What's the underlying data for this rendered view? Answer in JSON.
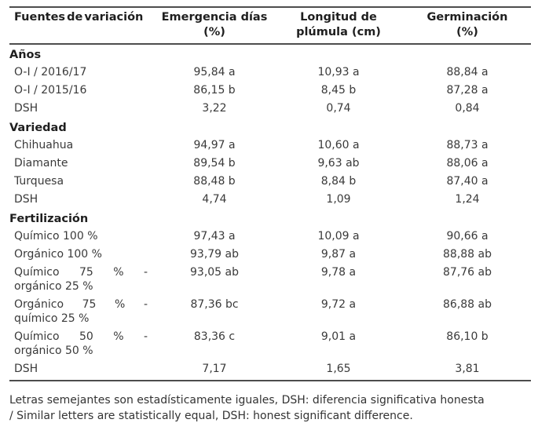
{
  "table": {
    "columns": [
      {
        "line1": "Fuentes de variación",
        "line2": ""
      },
      {
        "line1": "Emergencia días",
        "line2": "(%)"
      },
      {
        "line1": "Longitud de",
        "line2": "plúmula (cm)"
      },
      {
        "line1": "Germinación",
        "line2": "(%)"
      }
    ],
    "sections": [
      {
        "title": "Años",
        "rows": [
          {
            "label_lines": [
              "O-I / 2016/17"
            ],
            "values": [
              "95,84 a",
              "10,93 a",
              "88,84 a"
            ]
          },
          {
            "label_lines": [
              "O-I / 2015/16"
            ],
            "values": [
              "86,15 b",
              "8,45 b",
              "87,28 a"
            ]
          },
          {
            "label_lines": [
              "DSH"
            ],
            "values": [
              "3,22",
              "0,74",
              "0,84"
            ]
          }
        ]
      },
      {
        "title": "Variedad",
        "rows": [
          {
            "label_lines": [
              "Chihuahua"
            ],
            "values": [
              "94,97 a",
              "10,60 a",
              "88,73 a"
            ]
          },
          {
            "label_lines": [
              "Diamante"
            ],
            "values": [
              "89,54 b",
              "9,63 ab",
              "88,06 a"
            ]
          },
          {
            "label_lines": [
              "Turquesa"
            ],
            "values": [
              "88,48 b",
              "8,84 b",
              "87,40 a"
            ]
          },
          {
            "label_lines": [
              "DSH"
            ],
            "values": [
              "4,74",
              "1,09",
              "1,24"
            ]
          }
        ]
      },
      {
        "title": "Fertilización",
        "rows": [
          {
            "label_lines": [
              "Químico 100 %"
            ],
            "values": [
              "97,43 a",
              "10,09 a",
              "90,66 a"
            ]
          },
          {
            "label_lines": [
              "Orgánico 100 %"
            ],
            "values": [
              "93,79 ab",
              "9,87 a",
              "88,88 ab"
            ]
          },
          {
            "label_lines": [
              "Químico 75 % -",
              "orgánico 25 %"
            ],
            "values": [
              "93,05 ab",
              "9,78 a",
              "87,76 ab"
            ]
          },
          {
            "label_lines": [
              "Orgánico 75 % -",
              "químico 25 %"
            ],
            "values": [
              "87,36 bc",
              "9,72 a",
              "86,88 ab"
            ]
          },
          {
            "label_lines": [
              "Químico 50 % -",
              "orgánico 50 %"
            ],
            "values": [
              "83,36 c",
              "9,01 a",
              "86,10 b"
            ]
          },
          {
            "label_lines": [
              "DSH"
            ],
            "values": [
              "7,17",
              "1,65",
              "3,81"
            ]
          }
        ]
      }
    ]
  },
  "footnote": {
    "line1": "Letras semejantes son estadísticamente iguales, DSH: diferencia significativa honesta",
    "line2": "/ Similar letters are statistically equal, DSH: honest significant difference."
  }
}
